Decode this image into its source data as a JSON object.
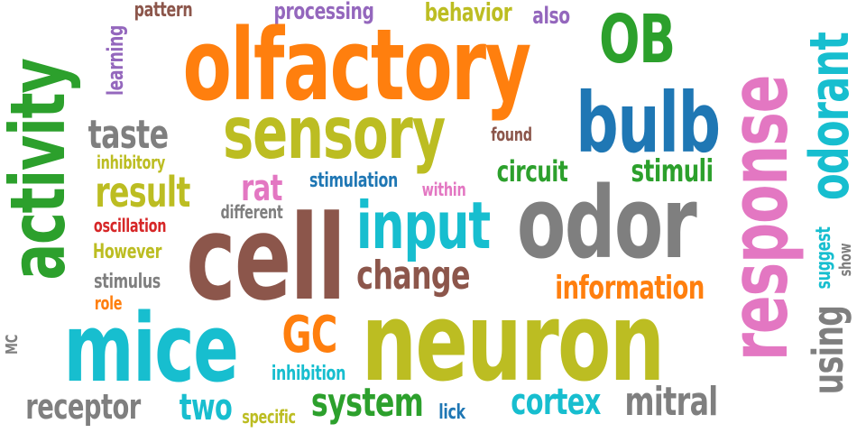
{
  "colors": {
    "orange": "#ff7f0e",
    "blue": "#1f77b4",
    "green": "#2ca02c",
    "red": "#d62728",
    "purple": "#9467bd",
    "brown": "#8c564b",
    "pink": "#e377c2",
    "gray": "#7f7f7f",
    "olive": "#bcbd22",
    "cyan": "#17becf"
  },
  "words": {
    "olfactory": "olfactory",
    "sensory": "sensory",
    "bulb": "bulb",
    "OB": "OB",
    "odor": "odor",
    "cell": "cell",
    "neuron": "neuron",
    "mice": "mice",
    "activity": "activity",
    "response": "response",
    "odorant": "odorant",
    "input": "input",
    "using": "using",
    "GC": "GC",
    "system": "system",
    "cortex": "cortex",
    "mitral": "mitral",
    "receptor": "receptor",
    "two": "two",
    "taste": "taste",
    "result": "result",
    "rat": "rat",
    "change": "change",
    "information": "information",
    "circuit": "circuit",
    "stimuli": "stimuli",
    "learning": "learning",
    "pattern": "pattern",
    "processing": "processing",
    "behavior": "behavior",
    "also": "also",
    "found": "found",
    "inhibitory": "inhibitory",
    "stimulation": "stimulation",
    "within": "within",
    "different": "different",
    "oscillation": "oscillation",
    "However": "However",
    "stimulus": "stimulus",
    "role": "role",
    "inhibition": "inhibition",
    "specific": "specific",
    "lick": "lick",
    "suggest": "suggest",
    "show": "show",
    "MC": "MC"
  }
}
